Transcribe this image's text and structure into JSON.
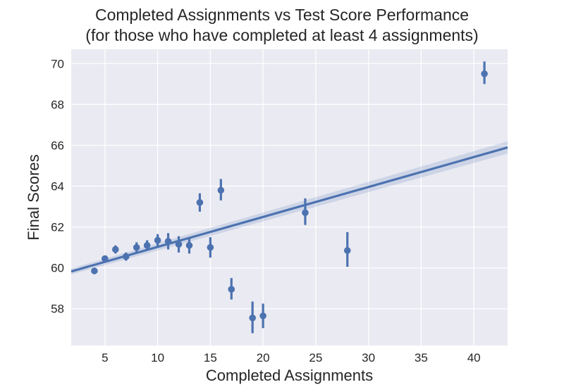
{
  "chart_data": {
    "type": "scatter",
    "title_lines": [
      "Completed Assignments vs Test Score Performance",
      "(for those who have completed at least 4 assignments)"
    ],
    "xlabel": "Completed Assignments",
    "ylabel": "Final Scores",
    "xlim": [
      1.8,
      43.2
    ],
    "ylim": [
      56.2,
      70.7
    ],
    "xticks": [
      5,
      10,
      15,
      20,
      25,
      30,
      35,
      40
    ],
    "yticks": [
      58,
      60,
      62,
      64,
      66,
      68,
      70
    ],
    "grid": true,
    "points": [
      {
        "x": 4,
        "y": 59.85,
        "lo": 59.7,
        "hi": 60.0
      },
      {
        "x": 5,
        "y": 60.45,
        "lo": 60.3,
        "hi": 60.6
      },
      {
        "x": 6,
        "y": 60.9,
        "lo": 60.7,
        "hi": 61.1
      },
      {
        "x": 7,
        "y": 60.55,
        "lo": 60.35,
        "hi": 60.75
      },
      {
        "x": 8,
        "y": 61.0,
        "lo": 60.75,
        "hi": 61.25
      },
      {
        "x": 9,
        "y": 61.1,
        "lo": 60.85,
        "hi": 61.35
      },
      {
        "x": 10,
        "y": 61.35,
        "lo": 61.05,
        "hi": 61.65
      },
      {
        "x": 11,
        "y": 61.3,
        "lo": 60.9,
        "hi": 61.7
      },
      {
        "x": 12,
        "y": 61.15,
        "lo": 60.75,
        "hi": 61.55
      },
      {
        "x": 13,
        "y": 61.1,
        "lo": 60.7,
        "hi": 61.5
      },
      {
        "x": 14,
        "y": 63.2,
        "lo": 62.75,
        "hi": 63.65
      },
      {
        "x": 15,
        "y": 61.0,
        "lo": 60.5,
        "hi": 61.5
      },
      {
        "x": 16,
        "y": 63.8,
        "lo": 63.3,
        "hi": 64.35
      },
      {
        "x": 17,
        "y": 58.95,
        "lo": 58.45,
        "hi": 59.5
      },
      {
        "x": 19,
        "y": 57.55,
        "lo": 56.8,
        "hi": 58.35
      },
      {
        "x": 20,
        "y": 57.65,
        "lo": 57.05,
        "hi": 58.25
      },
      {
        "x": 24,
        "y": 62.7,
        "lo": 62.1,
        "hi": 63.4
      },
      {
        "x": 28,
        "y": 60.85,
        "lo": 60.05,
        "hi": 61.75
      },
      {
        "x": 41,
        "y": 69.5,
        "lo": 69.0,
        "hi": 70.1
      }
    ],
    "regression": {
      "slope": 0.1466,
      "intercept": 59.56,
      "ci_start": 0.15,
      "ci_end": 0.3
    },
    "colors": {
      "series": "#4c72b0",
      "background": "#eaeaf2",
      "grid": "#ffffff",
      "text": "#262626"
    }
  }
}
